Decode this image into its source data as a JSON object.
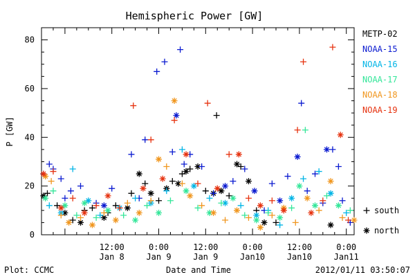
{
  "chart_data": {
    "type": "scatter",
    "title": "Hemispheric Power [GW]",
    "ylabel": "P [GW]",
    "xlabel": "Date and Time",
    "ylim": [
      0,
      85
    ],
    "xlim": [
      "2012-01-07 18:00",
      "2012-01-11 02:00"
    ],
    "x_unit": "hours since 2012-01-07 18:00",
    "yticks": [
      0,
      20,
      40,
      60,
      80
    ],
    "xticks": [
      {
        "x": 18,
        "label1": "12:00",
        "label2": "Jan 8"
      },
      {
        "x": 30,
        "label1": "0:00",
        "label2": "Jan 9"
      },
      {
        "x": 42,
        "label1": "12:00",
        "label2": "Jan 9"
      },
      {
        "x": 54,
        "label1": "0:00",
        "label2": "Jan10"
      },
      {
        "x": 66,
        "label1": "12:00",
        "label2": "Jan10"
      },
      {
        "x": 78,
        "label1": "0:00",
        "label2": "Jan11"
      }
    ],
    "grid": false,
    "legend_position": "right",
    "legend_symbols": [
      {
        "symbol": "+",
        "label": "south"
      },
      {
        "symbol": "*",
        "label": "north"
      }
    ],
    "series": [
      {
        "name": "METP-02",
        "color": "#000000",
        "points": [
          {
            "x": 0.5,
            "y": 16,
            "h": "n"
          },
          {
            "x": 1.5,
            "y": 17,
            "h": "s"
          },
          {
            "x": 4,
            "y": 12,
            "h": "s"
          },
          {
            "x": 6,
            "y": 9,
            "h": "n"
          },
          {
            "x": 8,
            "y": 6,
            "h": "s"
          },
          {
            "x": 10,
            "y": 5,
            "h": "n"
          },
          {
            "x": 11,
            "y": 10,
            "h": "s"
          },
          {
            "x": 13,
            "y": 11,
            "h": "s"
          },
          {
            "x": 16,
            "y": 7,
            "h": "n"
          },
          {
            "x": 17,
            "y": 9,
            "h": "s"
          },
          {
            "x": 19,
            "y": 12,
            "h": "s"
          },
          {
            "x": 22,
            "y": 11,
            "h": "n"
          },
          {
            "x": 23,
            "y": 17,
            "h": "s"
          },
          {
            "x": 25,
            "y": 25,
            "h": "n"
          },
          {
            "x": 26.5,
            "y": 21,
            "h": "s"
          },
          {
            "x": 28,
            "y": 17,
            "h": "n"
          },
          {
            "x": 30,
            "y": 14,
            "h": "s"
          },
          {
            "x": 32,
            "y": 19,
            "h": "n"
          },
          {
            "x": 33.5,
            "y": 22,
            "h": "s"
          },
          {
            "x": 35,
            "y": 21,
            "h": "n"
          },
          {
            "x": 36,
            "y": 25,
            "h": "s"
          },
          {
            "x": 37,
            "y": 26,
            "h": "n"
          },
          {
            "x": 38,
            "y": 27,
            "h": "s"
          },
          {
            "x": 40,
            "y": 28,
            "h": "n"
          },
          {
            "x": 42,
            "y": 18,
            "h": "s"
          },
          {
            "x": 44,
            "y": 17,
            "h": "n"
          },
          {
            "x": 44.8,
            "y": 49,
            "h": "s"
          },
          {
            "x": 46,
            "y": 18,
            "h": "n"
          },
          {
            "x": 48,
            "y": 16,
            "h": "s"
          },
          {
            "x": 50,
            "y": 29,
            "h": "n"
          },
          {
            "x": 51,
            "y": 28,
            "h": "s"
          },
          {
            "x": 53,
            "y": 22,
            "h": "n"
          },
          {
            "x": 55,
            "y": 10,
            "h": "s"
          },
          {
            "x": 57,
            "y": 5,
            "h": "n"
          },
          {
            "x": 60,
            "y": 5,
            "h": "s"
          },
          {
            "x": 74,
            "y": 4,
            "h": "n"
          }
        ]
      },
      {
        "name": "NOAA-15",
        "color": "#0a1ad0",
        "points": [
          {
            "x": 0.5,
            "y": 25,
            "h": "s"
          },
          {
            "x": 2,
            "y": 29,
            "h": "s"
          },
          {
            "x": 3,
            "y": 27,
            "h": "s"
          },
          {
            "x": 5,
            "y": 23,
            "h": "s"
          },
          {
            "x": 6,
            "y": 15,
            "h": "s"
          },
          {
            "x": 7.5,
            "y": 18,
            "h": "s"
          },
          {
            "x": 10,
            "y": 20,
            "h": "s"
          },
          {
            "x": 14,
            "y": 13,
            "h": "s"
          },
          {
            "x": 16,
            "y": 12,
            "h": "n"
          },
          {
            "x": 18,
            "y": 19,
            "h": "s"
          },
          {
            "x": 23,
            "y": 33,
            "h": "s"
          },
          {
            "x": 25,
            "y": 15,
            "h": "s"
          },
          {
            "x": 26.5,
            "y": 39,
            "h": "s"
          },
          {
            "x": 29.5,
            "y": 67,
            "h": "s"
          },
          {
            "x": 31.5,
            "y": 71,
            "h": "s"
          },
          {
            "x": 33.5,
            "y": 34,
            "h": "s"
          },
          {
            "x": 34.5,
            "y": 49,
            "h": "n"
          },
          {
            "x": 35.5,
            "y": 76,
            "h": "s"
          },
          {
            "x": 36.5,
            "y": 29,
            "h": "s"
          },
          {
            "x": 38,
            "y": 33,
            "h": "s"
          },
          {
            "x": 41,
            "y": 28,
            "h": "s"
          },
          {
            "x": 44,
            "y": 17,
            "h": "s"
          },
          {
            "x": 47,
            "y": 20,
            "h": "n"
          },
          {
            "x": 49,
            "y": 22,
            "h": "s"
          },
          {
            "x": 52,
            "y": 27,
            "h": "s"
          },
          {
            "x": 54.5,
            "y": 18,
            "h": "n"
          },
          {
            "x": 57,
            "y": 10,
            "h": "s"
          },
          {
            "x": 59,
            "y": 21,
            "h": "s"
          },
          {
            "x": 61,
            "y": 14,
            "h": "n"
          },
          {
            "x": 63,
            "y": 24,
            "h": "s"
          },
          {
            "x": 65.5,
            "y": 32,
            "h": "n"
          },
          {
            "x": 66.5,
            "y": 54,
            "h": "s"
          },
          {
            "x": 68,
            "y": 18,
            "h": "s"
          },
          {
            "x": 70,
            "y": 25,
            "h": "s"
          },
          {
            "x": 72,
            "y": 13,
            "h": "s"
          },
          {
            "x": 73,
            "y": 35,
            "h": "n"
          },
          {
            "x": 74.5,
            "y": 35,
            "h": "s"
          },
          {
            "x": 76,
            "y": 28,
            "h": "s"
          },
          {
            "x": 77,
            "y": 14,
            "h": "s"
          },
          {
            "x": 79,
            "y": 5,
            "h": "s"
          }
        ]
      },
      {
        "name": "NOAA-16",
        "color": "#00b4e6",
        "points": [
          {
            "x": 2,
            "y": 12,
            "h": "s"
          },
          {
            "x": 5,
            "y": 9,
            "h": "n"
          },
          {
            "x": 8,
            "y": 27,
            "h": "s"
          },
          {
            "x": 12,
            "y": 14,
            "h": "n"
          },
          {
            "x": 15,
            "y": 8,
            "h": "s"
          },
          {
            "x": 20,
            "y": 11,
            "h": "n"
          },
          {
            "x": 24,
            "y": 15,
            "h": "s"
          },
          {
            "x": 28,
            "y": 13,
            "h": "n"
          },
          {
            "x": 32,
            "y": 18,
            "h": "s"
          },
          {
            "x": 36,
            "y": 35,
            "h": "s"
          },
          {
            "x": 39,
            "y": 20,
            "h": "n"
          },
          {
            "x": 43,
            "y": 15,
            "h": "s"
          },
          {
            "x": 47,
            "y": 13,
            "h": "n"
          },
          {
            "x": 51,
            "y": 12,
            "h": "s"
          },
          {
            "x": 55,
            "y": 8,
            "h": "n"
          },
          {
            "x": 58,
            "y": 10,
            "h": "s"
          },
          {
            "x": 61,
            "y": 4,
            "h": "s"
          },
          {
            "x": 64,
            "y": 15,
            "h": "n"
          },
          {
            "x": 67,
            "y": 23,
            "h": "s"
          },
          {
            "x": 71,
            "y": 26,
            "h": "s"
          },
          {
            "x": 74,
            "y": 17,
            "h": "n"
          },
          {
            "x": 78,
            "y": 9,
            "h": "s"
          }
        ]
      },
      {
        "name": "NOAA-17",
        "color": "#33e699",
        "points": [
          {
            "x": 1,
            "y": 15,
            "h": "n"
          },
          {
            "x": 3,
            "y": 18,
            "h": "s"
          },
          {
            "x": 6,
            "y": 12,
            "h": "n"
          },
          {
            "x": 9,
            "y": 8,
            "h": "s"
          },
          {
            "x": 11,
            "y": 13,
            "h": "n"
          },
          {
            "x": 14,
            "y": 7,
            "h": "s"
          },
          {
            "x": 17,
            "y": 10,
            "h": "n"
          },
          {
            "x": 21,
            "y": 8,
            "h": "s"
          },
          {
            "x": 24,
            "y": 6,
            "h": "n"
          },
          {
            "x": 27,
            "y": 12,
            "h": "s"
          },
          {
            "x": 30,
            "y": 9,
            "h": "n"
          },
          {
            "x": 33,
            "y": 14,
            "h": "s"
          },
          {
            "x": 37,
            "y": 18,
            "h": "n"
          },
          {
            "x": 40,
            "y": 11,
            "h": "s"
          },
          {
            "x": 43,
            "y": 9,
            "h": "n"
          },
          {
            "x": 46,
            "y": 13,
            "h": "s"
          },
          {
            "x": 49,
            "y": 15,
            "h": "n"
          },
          {
            "x": 52,
            "y": 8,
            "h": "s"
          },
          {
            "x": 55,
            "y": 6,
            "h": "n"
          },
          {
            "x": 58,
            "y": 9,
            "h": "s"
          },
          {
            "x": 61,
            "y": 7,
            "h": "n"
          },
          {
            "x": 64,
            "y": 11,
            "h": "s"
          },
          {
            "x": 66,
            "y": 20,
            "h": "n"
          },
          {
            "x": 67.5,
            "y": 43,
            "h": "s"
          },
          {
            "x": 70,
            "y": 12,
            "h": "n"
          },
          {
            "x": 73,
            "y": 16,
            "h": "s"
          },
          {
            "x": 76,
            "y": 12,
            "h": "n"
          },
          {
            "x": 79,
            "y": 10,
            "h": "s"
          }
        ]
      },
      {
        "name": "NOAA-18",
        "color": "#f0961e",
        "points": [
          {
            "x": 1,
            "y": 24,
            "h": "n"
          },
          {
            "x": 2.5,
            "y": 22,
            "h": "s"
          },
          {
            "x": 5,
            "y": 8,
            "h": "s"
          },
          {
            "x": 7,
            "y": 5,
            "h": "n"
          },
          {
            "x": 10,
            "y": 7,
            "h": "s"
          },
          {
            "x": 13,
            "y": 4,
            "h": "n"
          },
          {
            "x": 16,
            "y": 9,
            "h": "s"
          },
          {
            "x": 19,
            "y": 6,
            "h": "n"
          },
          {
            "x": 22,
            "y": 13,
            "h": "s"
          },
          {
            "x": 25,
            "y": 9,
            "h": "n"
          },
          {
            "x": 28,
            "y": 14,
            "h": "s"
          },
          {
            "x": 30,
            "y": 31,
            "h": "n"
          },
          {
            "x": 32,
            "y": 28,
            "h": "s"
          },
          {
            "x": 34,
            "y": 55,
            "h": "n"
          },
          {
            "x": 36,
            "y": 21,
            "h": "s"
          },
          {
            "x": 38,
            "y": 16,
            "h": "n"
          },
          {
            "x": 41,
            "y": 12,
            "h": "s"
          },
          {
            "x": 44,
            "y": 9,
            "h": "n"
          },
          {
            "x": 47,
            "y": 6,
            "h": "s"
          },
          {
            "x": 50,
            "y": 10,
            "h": "n"
          },
          {
            "x": 53,
            "y": 7,
            "h": "s"
          },
          {
            "x": 56,
            "y": 3,
            "h": "n"
          },
          {
            "x": 59,
            "y": 8,
            "h": "s"
          },
          {
            "x": 62,
            "y": 11,
            "h": "n"
          },
          {
            "x": 65,
            "y": 5,
            "h": "s"
          },
          {
            "x": 68,
            "y": 15,
            "h": "n"
          },
          {
            "x": 71,
            "y": 10,
            "h": "s"
          },
          {
            "x": 74,
            "y": 22,
            "h": "n"
          },
          {
            "x": 77,
            "y": 7,
            "h": "s"
          },
          {
            "x": 80,
            "y": 6,
            "h": "n"
          }
        ]
      },
      {
        "name": "NOAA-19",
        "color": "#e6320f",
        "points": [
          {
            "x": 0.5,
            "y": 25,
            "h": "n"
          },
          {
            "x": 3,
            "y": 26,
            "h": "s"
          },
          {
            "x": 5,
            "y": 11,
            "h": "n"
          },
          {
            "x": 8,
            "y": 15,
            "h": "s"
          },
          {
            "x": 11,
            "y": 9,
            "h": "n"
          },
          {
            "x": 14,
            "y": 12,
            "h": "s"
          },
          {
            "x": 17,
            "y": 16,
            "h": "n"
          },
          {
            "x": 20,
            "y": 11,
            "h": "s"
          },
          {
            "x": 23.5,
            "y": 53,
            "h": "s"
          },
          {
            "x": 26,
            "y": 19,
            "h": "n"
          },
          {
            "x": 28,
            "y": 39,
            "h": "s"
          },
          {
            "x": 31,
            "y": 23,
            "h": "n"
          },
          {
            "x": 34,
            "y": 47,
            "h": "s"
          },
          {
            "x": 37,
            "y": 33,
            "h": "n"
          },
          {
            "x": 40,
            "y": 21,
            "h": "s"
          },
          {
            "x": 42.5,
            "y": 54,
            "h": "s"
          },
          {
            "x": 45,
            "y": 19,
            "h": "n"
          },
          {
            "x": 48,
            "y": 33,
            "h": "s"
          },
          {
            "x": 50.5,
            "y": 33,
            "h": "n"
          },
          {
            "x": 53,
            "y": 15,
            "h": "s"
          },
          {
            "x": 56,
            "y": 12,
            "h": "n"
          },
          {
            "x": 59,
            "y": 14,
            "h": "s"
          },
          {
            "x": 62,
            "y": 10,
            "h": "n"
          },
          {
            "x": 65.5,
            "y": 43,
            "h": "s"
          },
          {
            "x": 67,
            "y": 71,
            "h": "s"
          },
          {
            "x": 69,
            "y": 9,
            "h": "n"
          },
          {
            "x": 72,
            "y": 14,
            "h": "s"
          },
          {
            "x": 74.5,
            "y": 77,
            "h": "s"
          },
          {
            "x": 76.5,
            "y": 41,
            "h": "n"
          },
          {
            "x": 78.5,
            "y": 6,
            "h": "s"
          }
        ]
      }
    ]
  },
  "footer": {
    "left": "Plot: CCMC",
    "right": "2012/01/11 03:50:07"
  }
}
